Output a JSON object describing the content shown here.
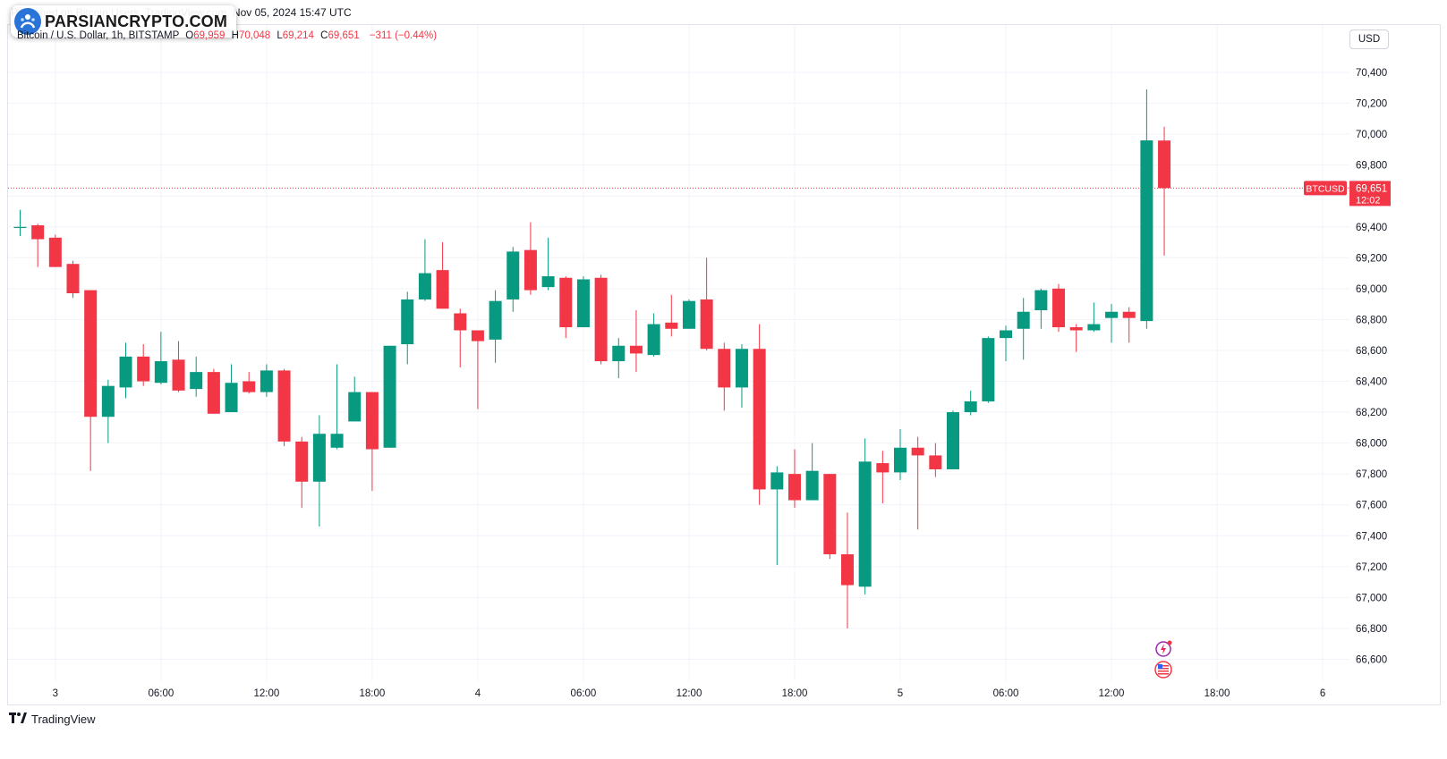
{
  "header": {
    "title_line": "Published on Bitcoin Users, TradingView.com, Nov 05, 2024 15:47 UTC",
    "watermark": "PARSIANCRYPTO.COM",
    "currency_button": "USD"
  },
  "legend": {
    "symbol": "Bitcoin / U.S. Dollar, 1h, BITSTAMP",
    "open_label": "O",
    "open": "69,959",
    "high_label": "H",
    "high": "70,048",
    "low_label": "L",
    "low": "69,214",
    "close_label": "C",
    "close": "69,651",
    "change": "−311 (−0.44%)"
  },
  "price_tag": {
    "symbol": "BTCUSD",
    "price": "69,651",
    "countdown": "12:02"
  },
  "footer": {
    "brand": "TradingView"
  },
  "colors": {
    "up": "#089981",
    "down": "#f23645",
    "grid": "#f0f3fa",
    "text": "#131722"
  },
  "icons": [
    "lightning-icon",
    "us-flag-icon"
  ],
  "chart_data": {
    "type": "candlestick",
    "timeframe": "1h",
    "ylim": [
      66400,
      70500
    ],
    "y_ticks": [
      70400,
      70200,
      70000,
      69800,
      69600,
      69400,
      69200,
      69000,
      68800,
      68600,
      68400,
      68200,
      68000,
      67800,
      67600,
      67400,
      67200,
      67000,
      66800,
      66600
    ],
    "y_tick_labels": [
      "70,400",
      "70,200",
      "70,000",
      "69,800",
      "69,600",
      "69,400",
      "69,200",
      "69,000",
      "68,800",
      "68,600",
      "68,400",
      "68,200",
      "68,000",
      "67,800",
      "67,600",
      "67,400",
      "67,200",
      "67,000",
      "66,800",
      "66,600"
    ],
    "x_ticks": [
      {
        "label": "3",
        "index": 2
      },
      {
        "label": "06:00",
        "index": 8
      },
      {
        "label": "12:00",
        "index": 14
      },
      {
        "label": "18:00",
        "index": 20
      },
      {
        "label": "4",
        "index": 26
      },
      {
        "label": "06:00",
        "index": 32
      },
      {
        "label": "12:00",
        "index": 38
      },
      {
        "label": "18:00",
        "index": 44
      },
      {
        "label": "5",
        "index": 50
      },
      {
        "label": "06:00",
        "index": 56
      },
      {
        "label": "12:00",
        "index": 62
      },
      {
        "label": "18:00",
        "index": 68
      },
      {
        "label": "6",
        "index": 74
      }
    ],
    "last_price": 69651,
    "candles": [
      {
        "o": 69400,
        "h": 69510,
        "l": 69340,
        "c": 69400
      },
      {
        "o": 69410,
        "h": 69420,
        "l": 69140,
        "c": 69320
      },
      {
        "o": 69330,
        "h": 69350,
        "l": 69140,
        "c": 69140
      },
      {
        "o": 69160,
        "h": 69180,
        "l": 68940,
        "c": 68970
      },
      {
        "o": 68990,
        "h": 68990,
        "l": 67820,
        "c": 68170
      },
      {
        "o": 68170,
        "h": 68410,
        "l": 68000,
        "c": 68370
      },
      {
        "o": 68360,
        "h": 68650,
        "l": 68290,
        "c": 68560
      },
      {
        "o": 68560,
        "h": 68640,
        "l": 68370,
        "c": 68400
      },
      {
        "o": 68390,
        "h": 68720,
        "l": 68380,
        "c": 68530
      },
      {
        "o": 68540,
        "h": 68660,
        "l": 68330,
        "c": 68340
      },
      {
        "o": 68350,
        "h": 68560,
        "l": 68300,
        "c": 68460
      },
      {
        "o": 68460,
        "h": 68480,
        "l": 68190,
        "c": 68190
      },
      {
        "o": 68200,
        "h": 68510,
        "l": 68200,
        "c": 68390
      },
      {
        "o": 68400,
        "h": 68460,
        "l": 68320,
        "c": 68330
      },
      {
        "o": 68330,
        "h": 68510,
        "l": 68300,
        "c": 68470
      },
      {
        "o": 68470,
        "h": 68480,
        "l": 67980,
        "c": 68010
      },
      {
        "o": 68010,
        "h": 68040,
        "l": 67580,
        "c": 67750
      },
      {
        "o": 67750,
        "h": 68180,
        "l": 67460,
        "c": 68060
      },
      {
        "o": 67970,
        "h": 68510,
        "l": 67960,
        "c": 68060
      },
      {
        "o": 68140,
        "h": 68430,
        "l": 68140,
        "c": 68330
      },
      {
        "o": 68330,
        "h": 68330,
        "l": 67690,
        "c": 67960
      },
      {
        "o": 67970,
        "h": 68630,
        "l": 67970,
        "c": 68630
      },
      {
        "o": 68640,
        "h": 68980,
        "l": 68510,
        "c": 68930
      },
      {
        "o": 68930,
        "h": 69320,
        "l": 68920,
        "c": 69100
      },
      {
        "o": 69120,
        "h": 69300,
        "l": 68870,
        "c": 68870
      },
      {
        "o": 68840,
        "h": 68870,
        "l": 68490,
        "c": 68730
      },
      {
        "o": 68730,
        "h": 68730,
        "l": 68220,
        "c": 68660
      },
      {
        "o": 68670,
        "h": 68990,
        "l": 68520,
        "c": 68920
      },
      {
        "o": 68930,
        "h": 69270,
        "l": 68850,
        "c": 69240
      },
      {
        "o": 69250,
        "h": 69430,
        "l": 68960,
        "c": 68990
      },
      {
        "o": 69010,
        "h": 69330,
        "l": 68990,
        "c": 69080
      },
      {
        "o": 69070,
        "h": 69080,
        "l": 68680,
        "c": 68750
      },
      {
        "o": 68750,
        "h": 69080,
        "l": 68750,
        "c": 69060
      },
      {
        "o": 69070,
        "h": 69090,
        "l": 68510,
        "c": 68530
      },
      {
        "o": 68530,
        "h": 68680,
        "l": 68420,
        "c": 68630
      },
      {
        "o": 68630,
        "h": 68860,
        "l": 68460,
        "c": 68580
      },
      {
        "o": 68570,
        "h": 68840,
        "l": 68560,
        "c": 68770
      },
      {
        "o": 68780,
        "h": 68960,
        "l": 68690,
        "c": 68740
      },
      {
        "o": 68740,
        "h": 68930,
        "l": 68740,
        "c": 68920
      },
      {
        "o": 68930,
        "h": 69200,
        "l": 68600,
        "c": 68610
      },
      {
        "o": 68610,
        "h": 68650,
        "l": 68210,
        "c": 68360
      },
      {
        "o": 68360,
        "h": 68640,
        "l": 68230,
        "c": 68610
      },
      {
        "o": 68610,
        "h": 68770,
        "l": 67600,
        "c": 67700
      },
      {
        "o": 67700,
        "h": 67850,
        "l": 67210,
        "c": 67810
      },
      {
        "o": 67800,
        "h": 67960,
        "l": 67580,
        "c": 67630
      },
      {
        "o": 67630,
        "h": 68000,
        "l": 67630,
        "c": 67820
      },
      {
        "o": 67800,
        "h": 67800,
        "l": 67250,
        "c": 67280
      },
      {
        "o": 67280,
        "h": 67550,
        "l": 66800,
        "c": 67080
      },
      {
        "o": 67070,
        "h": 68030,
        "l": 67020,
        "c": 67880
      },
      {
        "o": 67870,
        "h": 67950,
        "l": 67610,
        "c": 67810
      },
      {
        "o": 67810,
        "h": 68090,
        "l": 67760,
        "c": 67970
      },
      {
        "o": 67970,
        "h": 68040,
        "l": 67440,
        "c": 67920
      },
      {
        "o": 67920,
        "h": 68000,
        "l": 67780,
        "c": 67830
      },
      {
        "o": 67830,
        "h": 68210,
        "l": 67830,
        "c": 68200
      },
      {
        "o": 68200,
        "h": 68340,
        "l": 68180,
        "c": 68270
      },
      {
        "o": 68270,
        "h": 68690,
        "l": 68260,
        "c": 68680
      },
      {
        "o": 68680,
        "h": 68760,
        "l": 68530,
        "c": 68730
      },
      {
        "o": 68740,
        "h": 68940,
        "l": 68540,
        "c": 68850
      },
      {
        "o": 68860,
        "h": 69000,
        "l": 68740,
        "c": 68990
      },
      {
        "o": 69000,
        "h": 69030,
        "l": 68720,
        "c": 68750
      },
      {
        "o": 68750,
        "h": 68770,
        "l": 68590,
        "c": 68730
      },
      {
        "o": 68730,
        "h": 68910,
        "l": 68720,
        "c": 68770
      },
      {
        "o": 68810,
        "h": 68900,
        "l": 68650,
        "c": 68850
      },
      {
        "o": 68850,
        "h": 68880,
        "l": 68650,
        "c": 68810
      },
      {
        "o": 68790,
        "h": 70290,
        "l": 68740,
        "c": 69960
      },
      {
        "o": 69959,
        "h": 70048,
        "l": 69214,
        "c": 69651
      }
    ]
  }
}
